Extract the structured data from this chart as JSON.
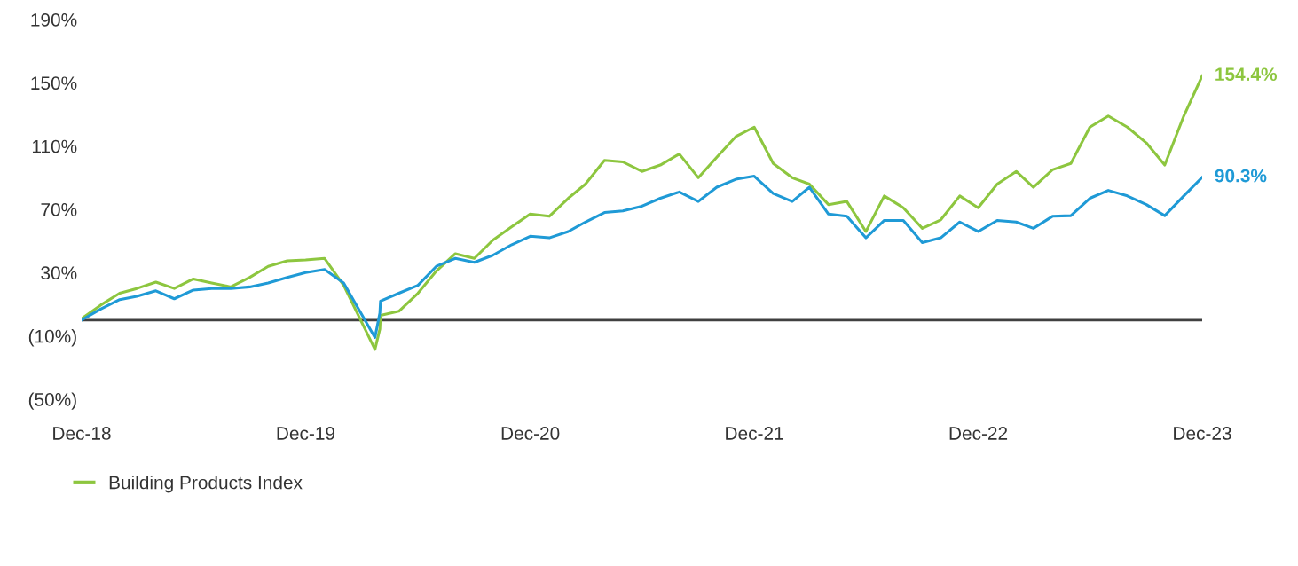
{
  "chart_data": {
    "type": "line",
    "x": [
      "2018-12",
      "2019-01",
      "2019-02",
      "2019-03",
      "2019-04",
      "2019-05",
      "2019-06",
      "2019-07",
      "2019-08",
      "2019-09",
      "2019-10",
      "2019-11",
      "2019-12",
      "2020-01",
      "2020-02",
      "2020-03-23",
      "2020-03-31",
      "2020-04",
      "2020-05",
      "2020-06",
      "2020-07",
      "2020-08",
      "2020-09",
      "2020-10",
      "2020-11",
      "2020-12",
      "2021-01",
      "2021-02",
      "2021-03",
      "2021-04",
      "2021-05",
      "2021-06",
      "2021-07",
      "2021-08",
      "2021-09",
      "2021-10",
      "2021-11",
      "2021-12",
      "2022-01",
      "2022-02",
      "2022-03",
      "2022-04",
      "2022-05",
      "2022-06",
      "2022-07",
      "2022-08",
      "2022-09",
      "2022-10",
      "2022-11",
      "2022-12",
      "2023-01",
      "2023-02",
      "2023-03",
      "2023-04",
      "2023-05",
      "2023-06",
      "2023-07",
      "2023-08",
      "2023-09",
      "2023-10",
      "2023-11",
      "2023-12"
    ],
    "series": [
      {
        "name": "Building Products Index",
        "color": "#8dc63f",
        "values": [
          1,
          9.5,
          17,
          20,
          24,
          20,
          26,
          23.5,
          21,
          27,
          34,
          37.5,
          38,
          39,
          22,
          -18.5,
          -5.6,
          3,
          5.6,
          17,
          31,
          42,
          39,
          50.5,
          59,
          67,
          65.6,
          77,
          86,
          101,
          100,
          94,
          98,
          105,
          90,
          103,
          116,
          122,
          99,
          90,
          86,
          73,
          75,
          56,
          78.5,
          71,
          58,
          63.4,
          78.5,
          71,
          86,
          94,
          84,
          95,
          99,
          122,
          129,
          122,
          112,
          98,
          129,
          154.4
        ]
      },
      {
        "color": "#1f9ad6",
        "values": [
          0,
          7,
          13,
          15,
          18.5,
          13.5,
          19,
          20,
          20,
          21,
          23.5,
          27,
          30,
          32,
          23.5,
          -11,
          4.5,
          12,
          17,
          22,
          34,
          39,
          36.5,
          41,
          47.7,
          53,
          52,
          56,
          62,
          68,
          69,
          72,
          77,
          81,
          75,
          84,
          89,
          91,
          80,
          75,
          84,
          67,
          65.6,
          52,
          63,
          63,
          49,
          52,
          62,
          56,
          63,
          62,
          58,
          65.6,
          66,
          77,
          82,
          78.5,
          73,
          66,
          78.5,
          90.3
        ]
      }
    ],
    "ylim": [
      -50,
      190
    ],
    "yticks": [
      {
        "value": -50,
        "label": "(50%)"
      },
      {
        "value": -10,
        "label": "(10%)"
      },
      {
        "value": 30,
        "label": "30%"
      },
      {
        "value": 70,
        "label": "70%"
      },
      {
        "value": 110,
        "label": "110%"
      },
      {
        "value": 150,
        "label": "150%"
      },
      {
        "value": 190,
        "label": "190%"
      }
    ],
    "xlim": [
      "2018-12",
      "2023-12"
    ],
    "xticks": [
      {
        "value": "2018-12",
        "label": "Dec-18"
      },
      {
        "value": "2019-12",
        "label": "Dec-19"
      },
      {
        "value": "2020-12",
        "label": "Dec-20"
      },
      {
        "value": "2021-12",
        "label": "Dec-21"
      },
      {
        "value": "2022-12",
        "label": "Dec-22"
      },
      {
        "value": "2023-12",
        "label": "Dec-23"
      }
    ],
    "ref_lines": [
      {
        "axis": "y",
        "value": 0,
        "color": "#404040"
      }
    ],
    "annotations": [
      {
        "text": "154.4%",
        "x": "2023-12",
        "y": 154.4
      },
      {
        "text": "90.3%",
        "x": "2023-12",
        "y": 90.3
      }
    ],
    "legend": "bottom",
    "grid": false,
    "marker": "none",
    "line_style": "solid"
  }
}
